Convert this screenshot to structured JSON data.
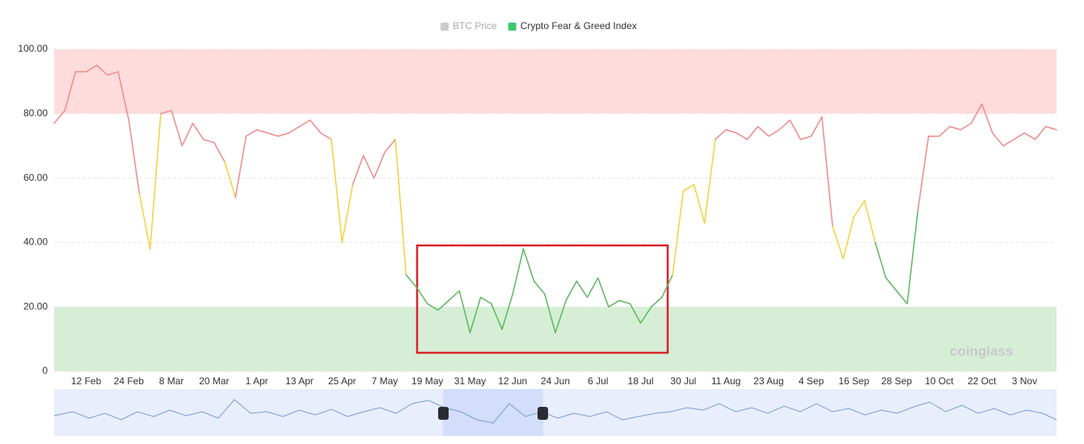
{
  "chart_data": {
    "type": "line",
    "legend": [
      {
        "name": "BTC Price",
        "color": "#cccccc",
        "active": false
      },
      {
        "name": "Crypto Fear & Greed Index",
        "color": "#3cc86a",
        "active": true
      }
    ],
    "watermark": "coinglass",
    "categories": [
      null,
      null,
      null,
      "12 Feb",
      null,
      null,
      null,
      "24 Feb",
      null,
      null,
      null,
      "8 Mar",
      null,
      null,
      null,
      "20 Mar",
      null,
      null,
      null,
      "1 Apr",
      null,
      null,
      null,
      "13 Apr",
      null,
      null,
      null,
      "25 Apr",
      null,
      null,
      null,
      "7 May",
      null,
      null,
      null,
      "19 May",
      null,
      null,
      null,
      "31 May",
      null,
      null,
      null,
      "12 Jun",
      null,
      null,
      null,
      "24 Jun",
      null,
      null,
      null,
      "6 Jul",
      null,
      null,
      null,
      "18 Jul",
      null,
      null,
      null,
      "30 Jul",
      null,
      null,
      null,
      "11 Aug",
      null,
      null,
      null,
      "23 Aug",
      null,
      null,
      null,
      "4 Sep",
      null,
      null,
      null,
      "16 Sep",
      null,
      null,
      null,
      "28 Sep",
      null,
      null,
      null,
      "10 Oct",
      null,
      null,
      null,
      "22 Oct",
      null,
      null,
      null,
      "3 Nov",
      null,
      null,
      null
    ],
    "series": [
      {
        "name": "Crypto Fear & Greed Index",
        "values": [
          77,
          81,
          93,
          93,
          95,
          92,
          93,
          78,
          55,
          38,
          80,
          81,
          70,
          77,
          72,
          71,
          65,
          54,
          73,
          75,
          74,
          73,
          74,
          76,
          78,
          74,
          72,
          40,
          58,
          67,
          60,
          68,
          72,
          30,
          26,
          21,
          19,
          22,
          25,
          12,
          23,
          21,
          13,
          24,
          38,
          28,
          24,
          12,
          22,
          28,
          23,
          29,
          20,
          22,
          21,
          15,
          20,
          23,
          30,
          56,
          58,
          46,
          72,
          75,
          74,
          72,
          76,
          73,
          75,
          78,
          72,
          73,
          79,
          45,
          35,
          48,
          53,
          40,
          29,
          25,
          21,
          50,
          73,
          73,
          76,
          75,
          77,
          83,
          74,
          70,
          72,
          74,
          72,
          76,
          75
        ]
      }
    ],
    "color_ranges": [
      {
        "min": 60,
        "color": "#f08a8a"
      },
      {
        "min": 40,
        "color": "#f2d23c"
      },
      {
        "min": 0,
        "color": "#5cb85c"
      }
    ],
    "bands": [
      {
        "from": 80,
        "to": 100,
        "color": "#ffdcdc"
      },
      {
        "from": 0,
        "to": 20,
        "color": "#d6eed6"
      }
    ],
    "ylim": [
      0,
      100
    ],
    "yticks": [
      0,
      {
        "value": 20,
        "label": "20.00"
      },
      {
        "value": 40,
        "label": "40.00"
      },
      {
        "value": 60,
        "label": "60.00"
      },
      {
        "value": 80,
        "label": "80.00"
      },
      {
        "value": 100,
        "label": "100.00"
      }
    ],
    "grid": true
  }
}
